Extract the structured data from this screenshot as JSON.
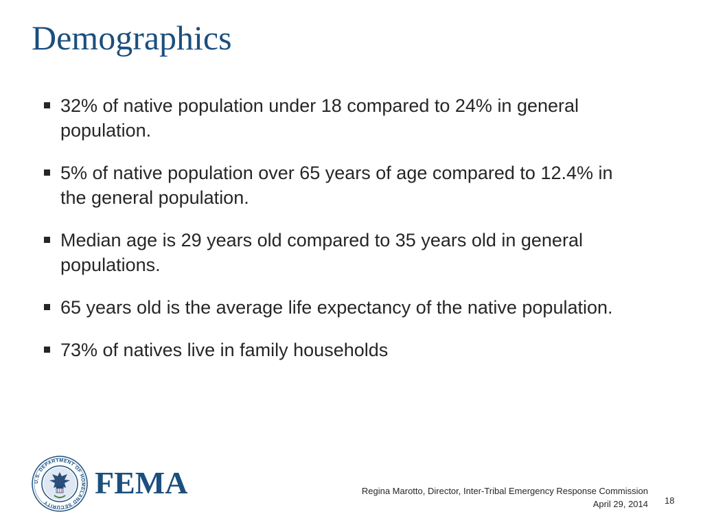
{
  "slide": {
    "title": "Demographics",
    "bullets": [
      "32% of native population under 18 compared to 24% in general population.",
      "5% of native population over 65 years of age compared to 12.4% in the general population.",
      "Median age is 29 years old compared to 35 years old in general populations.",
      "65 years old is the average life expectancy of the native population.",
      "73% of natives live in family households"
    ]
  },
  "footer": {
    "logo_text": "FEMA",
    "seal_text": "U.S. DEPARTMENT OF HOMELAND SECURITY",
    "presenter": "Regina Marotto, Director, Inter-Tribal Emergency Response Commission",
    "date": "April 29, 2014",
    "page_number": "18"
  },
  "colors": {
    "title": "#1b4f7e",
    "text": "#262626"
  },
  "icons": {
    "bullet": "square-bullet-icon",
    "seal": "dhs-seal-icon"
  }
}
